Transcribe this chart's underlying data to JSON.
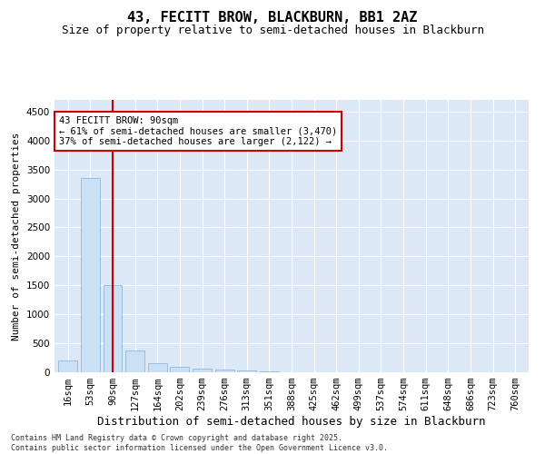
{
  "title": "43, FECITT BROW, BLACKBURN, BB1 2AZ",
  "subtitle": "Size of property relative to semi-detached houses in Blackburn",
  "xlabel": "Distribution of semi-detached houses by size in Blackburn",
  "ylabel": "Number of semi-detached properties",
  "categories": [
    "16sqm",
    "53sqm",
    "90sqm",
    "127sqm",
    "164sqm",
    "202sqm",
    "239sqm",
    "276sqm",
    "313sqm",
    "351sqm",
    "388sqm",
    "425sqm",
    "462sqm",
    "499sqm",
    "537sqm",
    "574sqm",
    "611sqm",
    "648sqm",
    "686sqm",
    "723sqm",
    "760sqm"
  ],
  "values": [
    200,
    3350,
    1500,
    370,
    150,
    90,
    55,
    40,
    25,
    15,
    5,
    0,
    0,
    0,
    0,
    0,
    0,
    0,
    0,
    0,
    0
  ],
  "bar_color": "#cce0f5",
  "bar_edge_color": "#90b8d8",
  "vline_x_index": 2,
  "vline_color": "#cc0000",
  "annotation_text": "43 FECITT BROW: 90sqm\n← 61% of semi-detached houses are smaller (3,470)\n37% of semi-detached houses are larger (2,122) →",
  "annotation_box_facecolor": "#ffffff",
  "annotation_box_edgecolor": "#cc0000",
  "ylim": [
    0,
    4700
  ],
  "yticks": [
    0,
    500,
    1000,
    1500,
    2000,
    2500,
    3000,
    3500,
    4000,
    4500
  ],
  "background_color": "#dce8f5",
  "grid_color": "#ffffff",
  "footer_text": "Contains HM Land Registry data © Crown copyright and database right 2025.\nContains public sector information licensed under the Open Government Licence v3.0.",
  "title_fontsize": 11,
  "subtitle_fontsize": 9,
  "xlabel_fontsize": 9,
  "ylabel_fontsize": 8,
  "tick_fontsize": 7.5,
  "footer_fontsize": 6
}
